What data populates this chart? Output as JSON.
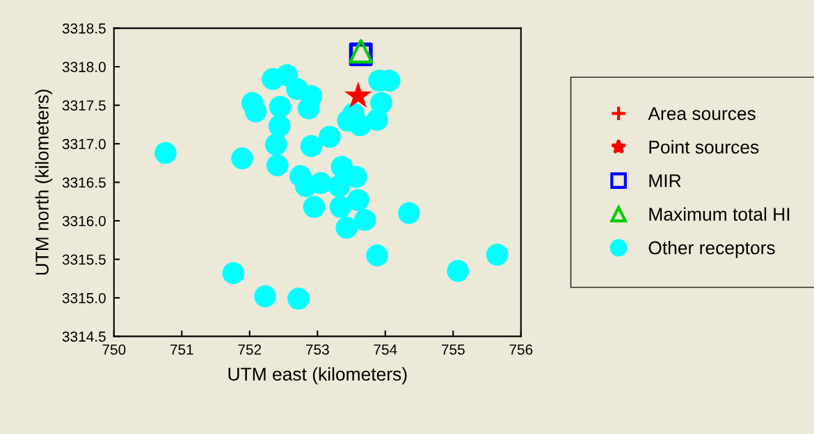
{
  "chart_data": {
    "type": "scatter",
    "xlabel": "UTM east (kilometers)",
    "ylabel": "UTM north (kilometers)",
    "xlim": [
      750,
      756
    ],
    "xticks": [
      750,
      751,
      752,
      753,
      754,
      755,
      756
    ],
    "ylim": [
      3314.5,
      3318.5
    ],
    "yticks": [
      {
        "value": 3314.5,
        "label": "3314.5"
      },
      {
        "value": 3315.0,
        "label": "3315.0"
      },
      {
        "value": 3315.5,
        "label": "3315.5"
      },
      {
        "value": 3316.0,
        "label": "3316.0"
      },
      {
        "value": 3316.5,
        "label": "3316.5"
      },
      {
        "value": 3317.0,
        "label": "3317.0"
      },
      {
        "value": 3317.5,
        "label": "3317.5"
      },
      {
        "value": 3318.0,
        "label": "3318.0"
      },
      {
        "value": 3318.5,
        "label": "3318.5"
      }
    ],
    "grid": false,
    "legend": "right",
    "series": [
      {
        "name": "Other receptors",
        "color": "#00ffff",
        "marker": "circle",
        "x": [
          750.76,
          751.89,
          751.76,
          752.23,
          752.72,
          752.04,
          752.09,
          752.34,
          752.55,
          752.7,
          752.91,
          752.45,
          752.44,
          752.39,
          752.41,
          752.87,
          752.91,
          753.18,
          752.75,
          752.83,
          753.05,
          752.95,
          753.36,
          753.57,
          753.32,
          753.34,
          753.6,
          753.7,
          753.43,
          753.88,
          754.35,
          755.07,
          755.65,
          753.91,
          754.06,
          753.94,
          753.88,
          753.53,
          753.45,
          753.63
        ],
        "values": [
          3316.88,
          3316.81,
          3315.32,
          3315.02,
          3314.99,
          3317.53,
          3317.42,
          3317.84,
          3317.89,
          3317.71,
          3317.62,
          3317.48,
          3317.23,
          3316.99,
          3316.72,
          3317.46,
          3316.97,
          3317.09,
          3316.58,
          3316.45,
          3316.49,
          3316.18,
          3316.7,
          3316.57,
          3316.45,
          3316.18,
          3316.27,
          3316.01,
          3315.91,
          3315.55,
          3316.1,
          3315.35,
          3315.56,
          3317.82,
          3317.82,
          3317.53,
          3317.31,
          3317.39,
          3317.3,
          3317.24
        ]
      },
      {
        "name": "Area sources",
        "color": "#ff0000",
        "marker": "cross"
      },
      {
        "name": "Point sources",
        "color": "#ff0000",
        "marker": "star",
        "x": [
          753.6
        ],
        "values": [
          3317.62
        ]
      },
      {
        "name": "MIR",
        "color": "#0000ff",
        "marker": "square",
        "x": [
          753.64
        ],
        "values": [
          3318.16
        ]
      },
      {
        "name": "Maximum total HI",
        "color": "#00cc00",
        "marker": "triangle",
        "x": [
          753.64
        ],
        "values": [
          3318.2
        ]
      }
    ]
  }
}
